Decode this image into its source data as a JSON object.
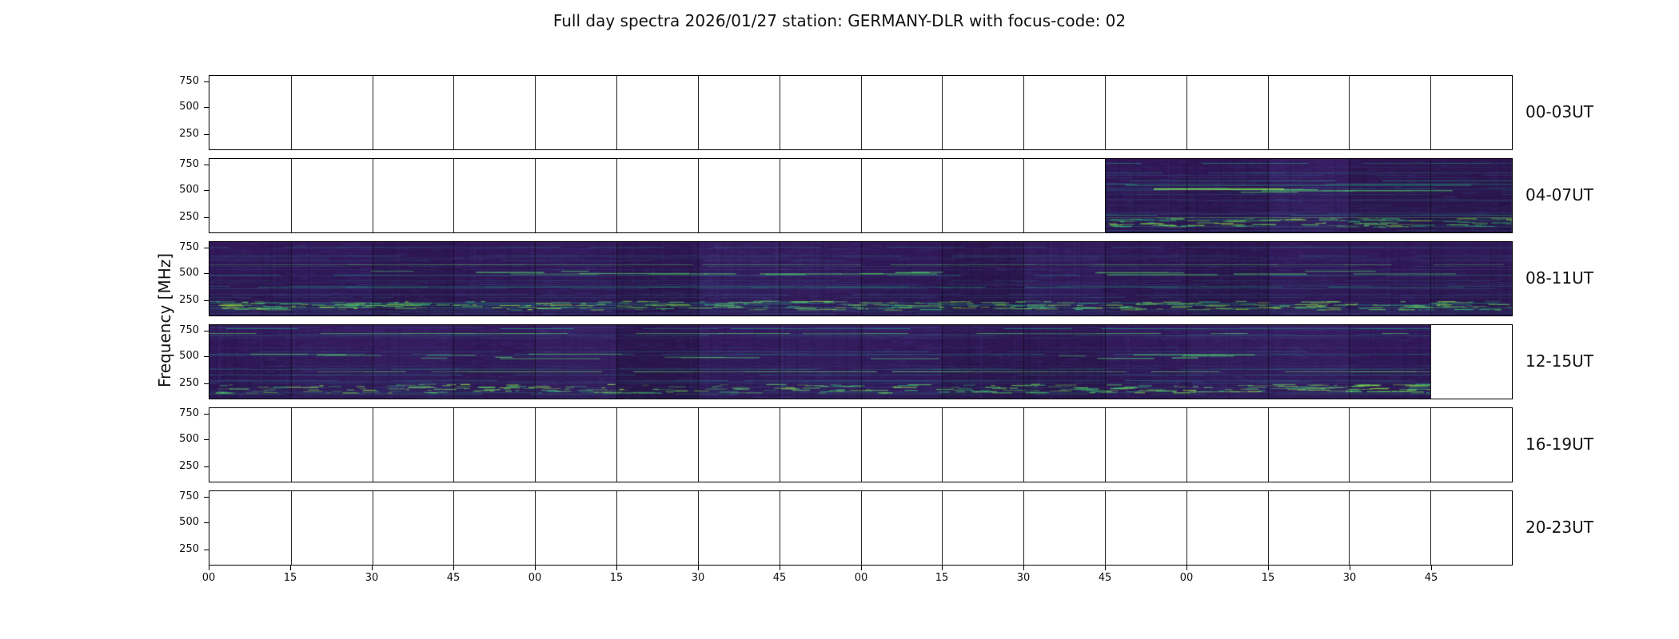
{
  "chart_data": {
    "type": "heatmap",
    "subtype": "spectrogram-tile-strips",
    "title": "Full day spectra 2026/01/27 station: GERMANY-DLR with focus-code: 02",
    "ylabel": "Frequency [MHz]",
    "y_tick_labels": [
      "750",
      "500",
      "250"
    ],
    "y_tick_values": [
      750,
      500,
      250
    ],
    "x_tick_labels": [
      "00",
      "15",
      "30",
      "45",
      "00",
      "15",
      "30",
      "45",
      "00",
      "15",
      "30",
      "45",
      "00",
      "15",
      "30",
      "45"
    ],
    "segments_per_panel": 16,
    "segment_minutes": 15,
    "hours_per_panel": 4,
    "colormap": "viridis",
    "data_base_color": "#331a5b",
    "data_line_colors": [
      "#39568c",
      "#277f8e",
      "#21a585",
      "#5ec962",
      "#8fd744"
    ],
    "grid": "segment-boundaries",
    "legend": "none",
    "panels": [
      {
        "label": "00-03UT",
        "has_data": false,
        "filled_from": null,
        "filled_to": null
      },
      {
        "label": "04-07UT",
        "has_data": true,
        "filled_from": 11,
        "filled_to": 15,
        "notable": "data begins ~06:45; bright emission line near 500 MHz and strong band near 220 MHz"
      },
      {
        "label": "08-11UT",
        "has_data": true,
        "filled_from": 0,
        "filled_to": 15,
        "notable": "full coverage; strong green band near 220 MHz"
      },
      {
        "label": "12-15UT",
        "has_data": true,
        "filled_from": 0,
        "filled_to": 14,
        "notable": "data ends ~15:45; strong green band near 220 MHz"
      },
      {
        "label": "16-19UT",
        "has_data": false,
        "filled_from": null,
        "filled_to": null
      },
      {
        "label": "20-23UT",
        "has_data": false,
        "filled_from": null,
        "filled_to": null
      }
    ]
  }
}
